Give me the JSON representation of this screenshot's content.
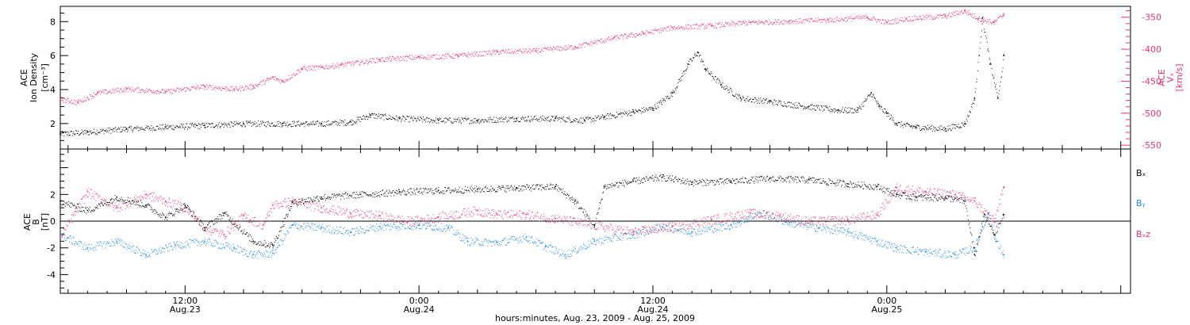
{
  "footer_label": "hours:minutes, Aug. 23, 2009 - Aug. 25, 2009",
  "x_ticks": [
    {
      "time": "12:00",
      "date": "Aug.23",
      "hours": 12
    },
    {
      "time": "0:00",
      "date": "Aug.24",
      "hours": 24
    },
    {
      "time": "12:00",
      "date": "Aug.24",
      "hours": 36
    },
    {
      "time": "0:00",
      "date": "Aug.25",
      "hours": 48
    }
  ],
  "colors": {
    "black": "#000000",
    "pink": "#e8336b",
    "blue": "#1e88e5"
  },
  "chart_data": [
    {
      "type": "scatter",
      "title": "",
      "x_range_hours": [
        5.6,
        60.5
      ],
      "left_axis": {
        "label_lines": [
          "ACE",
          "Ion Density"
        ],
        "unit": "[cm⁻³]",
        "ylim": [
          0.5,
          8.9
        ],
        "ticks": [
          2,
          4,
          6,
          8
        ]
      },
      "right_axis": {
        "label_lines": [
          "ACE",
          "Vₓ"
        ],
        "unit": "[km/s]",
        "ylim": [
          -556,
          -333
        ],
        "ticks": [
          -350,
          -400,
          -450,
          -500,
          -550
        ]
      },
      "series": [
        {
          "name": "Ion Density",
          "axis": "left",
          "color": "#000000",
          "points": [
            [
              5.6,
              1.4
            ],
            [
              7,
              1.5
            ],
            [
              9,
              1.7
            ],
            [
              11,
              1.8
            ],
            [
              13,
              1.9
            ],
            [
              15,
              2.0
            ],
            [
              17,
              2.0
            ],
            [
              19,
              2.0
            ],
            [
              20.5,
              2.1
            ],
            [
              21.5,
              2.5
            ],
            [
              23,
              2.3
            ],
            [
              25,
              2.2
            ],
            [
              27,
              2.2
            ],
            [
              29,
              2.3
            ],
            [
              31,
              2.3
            ],
            [
              32.5,
              2.2
            ],
            [
              33.5,
              2.4
            ],
            [
              35,
              2.7
            ],
            [
              36,
              2.9
            ],
            [
              37,
              3.8
            ],
            [
              37.8,
              5.5
            ],
            [
              38.3,
              6.2
            ],
            [
              38.7,
              5.2
            ],
            [
              39.5,
              4.3
            ],
            [
              40.5,
              3.5
            ],
            [
              42,
              3.3
            ],
            [
              44,
              3.0
            ],
            [
              45.5,
              2.8
            ],
            [
              46.5,
              2.8
            ],
            [
              47.2,
              3.8
            ],
            [
              47.6,
              3.0
            ],
            [
              48,
              2.6
            ],
            [
              48.5,
              2.0
            ],
            [
              49.5,
              1.8
            ],
            [
              51,
              1.7
            ],
            [
              52,
              2.0
            ],
            [
              52.5,
              3.5
            ],
            [
              52.9,
              8.2
            ],
            [
              53.3,
              5.5
            ],
            [
              53.7,
              3.5
            ],
            [
              54,
              6.0
            ]
          ]
        },
        {
          "name": "Vx",
          "axis": "right",
          "color": "#e8336b",
          "points": [
            [
              5.6,
              -478
            ],
            [
              6.5,
              -483
            ],
            [
              7.5,
              -468
            ],
            [
              9,
              -462
            ],
            [
              11,
              -466
            ],
            [
              13,
              -458
            ],
            [
              14.5,
              -462
            ],
            [
              15.5,
              -458
            ],
            [
              16.5,
              -444
            ],
            [
              17,
              -450
            ],
            [
              18,
              -430
            ],
            [
              19,
              -428
            ],
            [
              20,
              -424
            ],
            [
              22,
              -416
            ],
            [
              24,
              -412
            ],
            [
              26,
              -410
            ],
            [
              28,
              -404
            ],
            [
              30,
              -402
            ],
            [
              32,
              -396
            ],
            [
              34,
              -382
            ],
            [
              35.5,
              -375
            ],
            [
              37,
              -366
            ],
            [
              39,
              -363
            ],
            [
              41,
              -358
            ],
            [
              43,
              -356
            ],
            [
              45,
              -354
            ],
            [
              47,
              -350
            ],
            [
              48,
              -358
            ],
            [
              49,
              -352
            ],
            [
              51,
              -348
            ],
            [
              52,
              -340
            ],
            [
              52.7,
              -352
            ],
            [
              53.5,
              -358
            ],
            [
              54,
              -345
            ]
          ]
        }
      ]
    },
    {
      "type": "scatter",
      "title": "",
      "x_range_hours": [
        5.6,
        60.5
      ],
      "left_axis": {
        "label_lines": [
          "ACE",
          "B"
        ],
        "unit": "[nT]",
        "ylim": [
          -5.4,
          5.4
        ],
        "ticks": [
          2,
          0,
          -2,
          -4
        ]
      },
      "legend_position": "right",
      "zero_line": true,
      "series": [
        {
          "name": "Bₓ",
          "color": "#000000",
          "points": [
            [
              5.6,
              1.5
            ],
            [
              7,
              0.8
            ],
            [
              8.5,
              1.8
            ],
            [
              10,
              1.2
            ],
            [
              11,
              0.3
            ],
            [
              12,
              1.2
            ],
            [
              13,
              -0.5
            ],
            [
              14,
              0.6
            ],
            [
              15.5,
              -1.5
            ],
            [
              16.5,
              -1.8
            ],
            [
              17.5,
              1.4
            ],
            [
              19,
              1.8
            ],
            [
              21,
              2.0
            ],
            [
              23,
              2.2
            ],
            [
              25,
              2.3
            ],
            [
              27,
              2.4
            ],
            [
              29,
              2.5
            ],
            [
              31,
              2.6
            ],
            [
              32,
              1.5
            ],
            [
              33,
              -0.3
            ],
            [
              33.5,
              2.6
            ],
            [
              35,
              3.0
            ],
            [
              36.5,
              3.3
            ],
            [
              38,
              2.9
            ],
            [
              40,
              3.0
            ],
            [
              42,
              3.2
            ],
            [
              44,
              3.1
            ],
            [
              46,
              2.8
            ],
            [
              47.5,
              2.6
            ],
            [
              48.5,
              2.0
            ],
            [
              49.5,
              1.8
            ],
            [
              51,
              1.8
            ],
            [
              52,
              1.5
            ],
            [
              52.5,
              -2.5
            ],
            [
              53,
              0.5
            ],
            [
              53.5,
              -1.0
            ],
            [
              54,
              0.5
            ]
          ]
        },
        {
          "name": "Bᵧ",
          "color": "#1e88e5",
          "points": [
            [
              5.6,
              -1.0
            ],
            [
              7,
              -2.0
            ],
            [
              8.5,
              -1.5
            ],
            [
              10,
              -2.5
            ],
            [
              11.5,
              -1.8
            ],
            [
              13,
              -1.5
            ],
            [
              14.5,
              -2.0
            ],
            [
              15.5,
              -2.5
            ],
            [
              16.5,
              -2.4
            ],
            [
              17.5,
              -0.3
            ],
            [
              19,
              -0.5
            ],
            [
              20.5,
              -0.8
            ],
            [
              22,
              -0.4
            ],
            [
              24,
              -0.3
            ],
            [
              25.5,
              -0.5
            ],
            [
              26.5,
              -1.5
            ],
            [
              28,
              -1.6
            ],
            [
              29.5,
              -1.2
            ],
            [
              30.5,
              -1.9
            ],
            [
              31.5,
              -2.5
            ],
            [
              33,
              -1.5
            ],
            [
              35,
              -1.0
            ],
            [
              36.5,
              -0.4
            ],
            [
              38,
              -0.8
            ],
            [
              40,
              -0.3
            ],
            [
              41.5,
              0.6
            ],
            [
              43,
              -0.1
            ],
            [
              44.5,
              -0.5
            ],
            [
              46,
              -0.8
            ],
            [
              47.5,
              -1.5
            ],
            [
              48.5,
              -2.0
            ],
            [
              50,
              -2.3
            ],
            [
              51.5,
              -2.5
            ],
            [
              52.5,
              -2.0
            ],
            [
              53.2,
              0.6
            ],
            [
              53.6,
              -1.5
            ],
            [
              54,
              -2.5
            ]
          ]
        },
        {
          "name": "Bₓz",
          "color": "#e8336b",
          "points": [
            [
              5.6,
              -1.2
            ],
            [
              7,
              2.2
            ],
            [
              8.5,
              1.0
            ],
            [
              10,
              2.0
            ],
            [
              11,
              1.5
            ],
            [
              12,
              1.0
            ],
            [
              13,
              -0.5
            ],
            [
              14,
              -1.0
            ],
            [
              15,
              0.4
            ],
            [
              16,
              -0.3
            ],
            [
              16.5,
              1.2
            ],
            [
              17.5,
              1.5
            ],
            [
              19,
              1.0
            ],
            [
              20.5,
              0.6
            ],
            [
              22,
              0.4
            ],
            [
              23.5,
              0.0
            ],
            [
              25,
              0.3
            ],
            [
              27,
              0.8
            ],
            [
              28,
              0.5
            ],
            [
              29.5,
              0.5
            ],
            [
              31,
              0.2
            ],
            [
              33,
              -0.3
            ],
            [
              35,
              -0.8
            ],
            [
              37,
              -0.4
            ],
            [
              39,
              0.1
            ],
            [
              41,
              0.6
            ],
            [
              42.5,
              0.4
            ],
            [
              44,
              0.0
            ],
            [
              46,
              0.1
            ],
            [
              47.5,
              0.5
            ],
            [
              48.5,
              2.5
            ],
            [
              50,
              2.2
            ],
            [
              51.5,
              2.0
            ],
            [
              52.5,
              1.5
            ],
            [
              53.5,
              0.0
            ],
            [
              54,
              2.5
            ]
          ]
        }
      ]
    }
  ]
}
